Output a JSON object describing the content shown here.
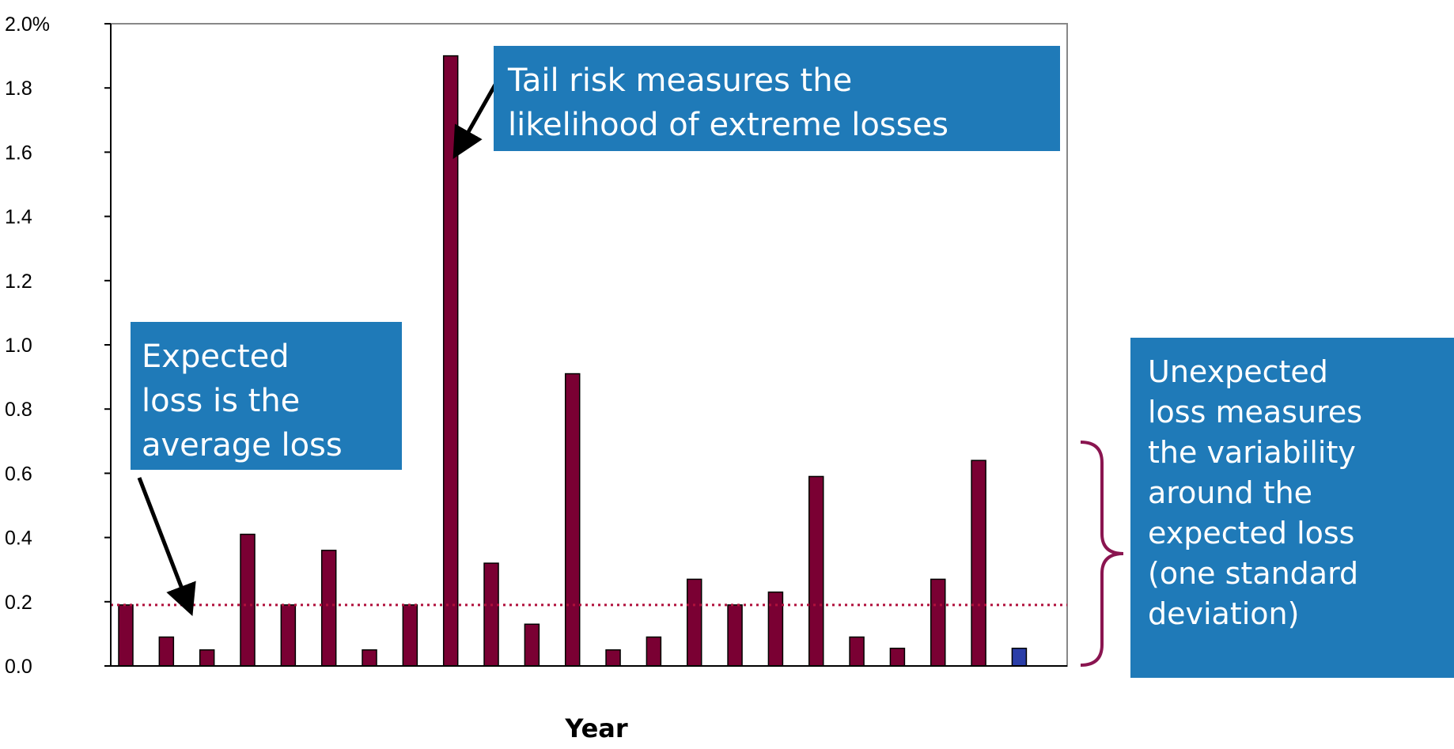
{
  "chart_data": {
    "type": "bar",
    "xlabel": "Year",
    "ylabel": "",
    "ylim": [
      0,
      2.0
    ],
    "yticks": [
      {
        "value": 0.0,
        "label": "0.0"
      },
      {
        "value": 0.2,
        "label": "0.2"
      },
      {
        "value": 0.4,
        "label": "0.4"
      },
      {
        "value": 0.6,
        "label": "0.6"
      },
      {
        "value": 0.8,
        "label": "0.8"
      },
      {
        "value": 1.0,
        "label": "1.0"
      },
      {
        "value": 1.2,
        "label": "1.2"
      },
      {
        "value": 1.4,
        "label": "1.4"
      },
      {
        "value": 1.6,
        "label": "1.6"
      },
      {
        "value": 1.8,
        "label": "1.8"
      },
      {
        "value": 2.0,
        "label": "2.0%"
      }
    ],
    "values": [
      0.19,
      0.09,
      0.05,
      0.41,
      0.19,
      0.36,
      0.05,
      0.19,
      1.9,
      0.32,
      0.13,
      0.91,
      0.05,
      0.09,
      0.27,
      0.19,
      0.23,
      0.59,
      0.09,
      0.055,
      0.27,
      0.64,
      0.055
    ],
    "bar_colors": [
      "#7a0033",
      "#7a0033",
      "#7a0033",
      "#7a0033",
      "#7a0033",
      "#7a0033",
      "#7a0033",
      "#7a0033",
      "#7a0033",
      "#7a0033",
      "#7a0033",
      "#7a0033",
      "#7a0033",
      "#7a0033",
      "#7a0033",
      "#7a0033",
      "#7a0033",
      "#7a0033",
      "#7a0033",
      "#7a0033",
      "#7a0033",
      "#7a0033",
      "#2b3ea8"
    ],
    "expected_loss_line": 0.19,
    "grid": false,
    "legend": "none",
    "annotations": {
      "tail_risk": "Tail risk measures the\nlikelihood of extreme losses",
      "expected_loss": "Expected\nloss is the\naverage loss",
      "unexpected_loss": "Unexpected\nloss measures\nthe variability\naround the\nexpected loss\n(one standard\ndeviation)"
    }
  },
  "colors": {
    "bar": "#7a0033",
    "last_bar": "#2b3ea8",
    "callout_bg": "#1f7ab8",
    "mean_line": "#b0103c",
    "brace": "#8a1550"
  }
}
